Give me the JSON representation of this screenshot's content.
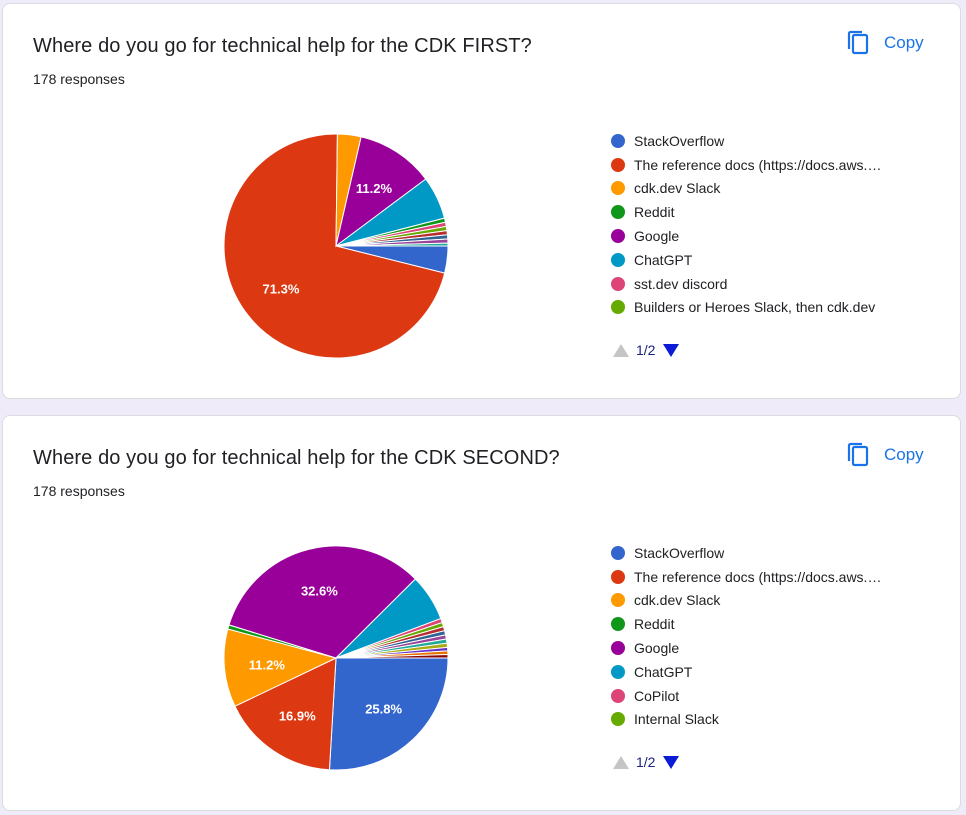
{
  "copy_label": "Copy",
  "pager_text": "1/2",
  "colors": {
    "StackOverflow": "#3366cc",
    "reference_docs": "#dc3912",
    "cdk_slack": "#ff9900",
    "reddit": "#109618",
    "google": "#990099",
    "chatgpt": "#0099c6",
    "pink": "#dd4477",
    "lime": "#66aa00",
    "accent": "#1a73e8"
  },
  "questions": [
    {
      "title": "Where do you go for technical help for the CDK FIRST?",
      "responses": "178 responses",
      "legend": [
        {
          "label": "StackOverflow",
          "color": "#3366cc"
        },
        {
          "label": "The reference docs (https://docs.aws.…",
          "color": "#dc3912"
        },
        {
          "label": "cdk.dev Slack",
          "color": "#ff9900"
        },
        {
          "label": "Reddit",
          "color": "#109618"
        },
        {
          "label": "Google",
          "color": "#990099"
        },
        {
          "label": "ChatGPT",
          "color": "#0099c6"
        },
        {
          "label": "sst.dev discord",
          "color": "#dd4477"
        },
        {
          "label": "Builders or Heroes Slack, then cdk.dev",
          "color": "#66aa00"
        }
      ]
    },
    {
      "title": "Where do you go for technical help for the CDK SECOND?",
      "responses": "178 responses",
      "legend": [
        {
          "label": "StackOverflow",
          "color": "#3366cc"
        },
        {
          "label": "The reference docs (https://docs.aws.…",
          "color": "#dc3912"
        },
        {
          "label": "cdk.dev Slack",
          "color": "#ff9900"
        },
        {
          "label": "Reddit",
          "color": "#109618"
        },
        {
          "label": "Google",
          "color": "#990099"
        },
        {
          "label": "ChatGPT",
          "color": "#0099c6"
        },
        {
          "label": "CoPilot",
          "color": "#dd4477"
        },
        {
          "label": "Internal Slack",
          "color": "#66aa00"
        }
      ]
    }
  ],
  "chart_data": [
    {
      "type": "pie",
      "title": "Where do you go for technical help for the CDK FIRST?",
      "total_responses": 178,
      "slices": [
        {
          "label": "StackOverflow",
          "value": 3.9,
          "color": "#3366cc",
          "data_label": ""
        },
        {
          "label": "The reference docs (https://docs.aws.…",
          "value": 71.3,
          "color": "#dc3912",
          "data_label": "71.3%"
        },
        {
          "label": "cdk.dev Slack",
          "value": 3.4,
          "color": "#ff9900",
          "data_label": ""
        },
        {
          "label": "Google",
          "value": 11.2,
          "color": "#990099",
          "data_label": "11.2%"
        },
        {
          "label": "ChatGPT",
          "value": 6.2,
          "color": "#0099c6",
          "data_label": ""
        },
        {
          "label": "Reddit",
          "value": 0.6,
          "color": "#109618",
          "data_label": ""
        },
        {
          "label": "sst.dev discord",
          "value": 0.6,
          "color": "#dd4477",
          "data_label": ""
        },
        {
          "label": "Builders or Heroes Slack, then cdk.dev",
          "value": 0.6,
          "color": "#66aa00",
          "data_label": ""
        },
        {
          "label": "",
          "value": 0.6,
          "color": "#b82e2e",
          "data_label": ""
        },
        {
          "label": "",
          "value": 0.6,
          "color": "#316395",
          "data_label": ""
        },
        {
          "label": "",
          "value": 0.6,
          "color": "#994499",
          "data_label": ""
        },
        {
          "label": "",
          "value": 0.4,
          "color": "#22aa99",
          "data_label": ""
        }
      ]
    },
    {
      "type": "pie",
      "title": "Where do you go for technical help for the CDK SECOND?",
      "total_responses": 178,
      "slices": [
        {
          "label": "StackOverflow",
          "value": 25.8,
          "color": "#3366cc",
          "data_label": "25.8%"
        },
        {
          "label": "The reference docs (https://docs.aws.…",
          "value": 16.9,
          "color": "#dc3912",
          "data_label": "16.9%"
        },
        {
          "label": "cdk.dev Slack",
          "value": 11.2,
          "color": "#ff9900",
          "data_label": "11.2%"
        },
        {
          "label": "Reddit",
          "value": 0.6,
          "color": "#109618",
          "data_label": ""
        },
        {
          "label": "Google",
          "value": 32.6,
          "color": "#990099",
          "data_label": "32.6%"
        },
        {
          "label": "ChatGPT",
          "value": 6.7,
          "color": "#0099c6",
          "data_label": ""
        },
        {
          "label": "CoPilot",
          "value": 0.6,
          "color": "#dd4477",
          "data_label": ""
        },
        {
          "label": "Internal Slack",
          "value": 0.6,
          "color": "#66aa00",
          "data_label": ""
        },
        {
          "label": "",
          "value": 0.6,
          "color": "#b82e2e",
          "data_label": ""
        },
        {
          "label": "",
          "value": 0.6,
          "color": "#316395",
          "data_label": ""
        },
        {
          "label": "",
          "value": 0.6,
          "color": "#994499",
          "data_label": ""
        },
        {
          "label": "",
          "value": 0.6,
          "color": "#22aa99",
          "data_label": ""
        },
        {
          "label": "",
          "value": 0.6,
          "color": "#aaaa11",
          "data_label": ""
        },
        {
          "label": "",
          "value": 0.5,
          "color": "#6633cc",
          "data_label": ""
        },
        {
          "label": "",
          "value": 0.5,
          "color": "#e67300",
          "data_label": ""
        },
        {
          "label": "",
          "value": 0.5,
          "color": "#8b0707",
          "data_label": ""
        }
      ]
    }
  ]
}
